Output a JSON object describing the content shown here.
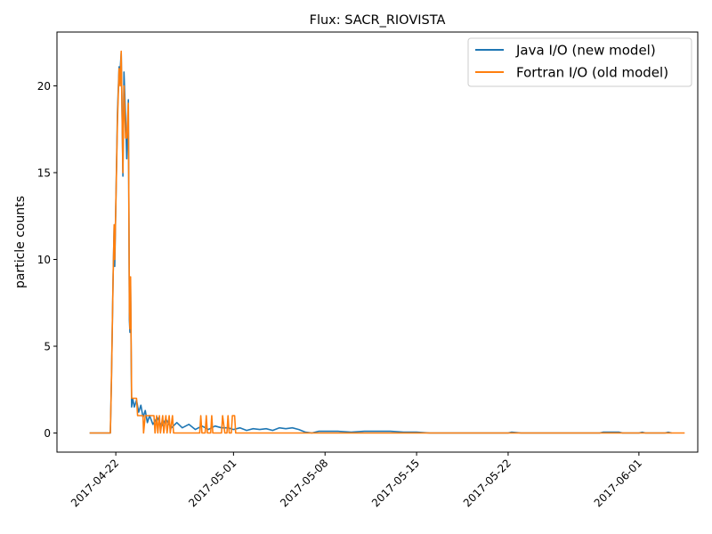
{
  "chart_data": {
    "type": "line",
    "title": "Flux: SACR_RIOVISTA",
    "xlabel": "",
    "ylabel": "particle counts",
    "x_ticks": [
      "2017-04-22",
      "2017-05-01",
      "2017-05-08",
      "2017-05-15",
      "2017-05-22",
      "2017-06-01"
    ],
    "y_ticks": [
      "0",
      "5",
      "10",
      "15",
      "20"
    ],
    "xlim": [
      "2017-04-17T12:00",
      "2017-06-05T12:00"
    ],
    "ylim": [
      -1.1,
      23.1
    ],
    "grid": false,
    "legend": "top-right",
    "series": [
      {
        "name": "Java I/O (new model)",
        "color": "#1f77b4",
        "points": [
          [
            "2017-04-20T00:00",
            0
          ],
          [
            "2017-04-21T14:00",
            0
          ],
          [
            "2017-04-21T16:00",
            3.0
          ],
          [
            "2017-04-21T19:00",
            9.0
          ],
          [
            "2017-04-21T21:00",
            12.0
          ],
          [
            "2017-04-21T22:00",
            9.6
          ],
          [
            "2017-04-22T00:00",
            13.0
          ],
          [
            "2017-04-22T03:00",
            18.5
          ],
          [
            "2017-04-22T06:00",
            21.1
          ],
          [
            "2017-04-22T08:00",
            20.9
          ],
          [
            "2017-04-22T10:00",
            21.9
          ],
          [
            "2017-04-22T13:00",
            14.8
          ],
          [
            "2017-04-22T15:00",
            20.8
          ],
          [
            "2017-04-22T18:00",
            18.2
          ],
          [
            "2017-04-22T20:00",
            15.8
          ],
          [
            "2017-04-22T23:00",
            19.2
          ],
          [
            "2017-04-23T01:00",
            6.5
          ],
          [
            "2017-04-23T02:00",
            5.8
          ],
          [
            "2017-04-23T03:00",
            8.5
          ],
          [
            "2017-04-23T05:00",
            1.5
          ],
          [
            "2017-04-23T07:00",
            2.0
          ],
          [
            "2017-04-23T10:00",
            1.5
          ],
          [
            "2017-04-23T14:00",
            1.9
          ],
          [
            "2017-04-23T18:00",
            1.2
          ],
          [
            "2017-04-23T22:00",
            1.6
          ],
          [
            "2017-04-24T02:00",
            0.9
          ],
          [
            "2017-04-24T06:00",
            1.3
          ],
          [
            "2017-04-24T10:00",
            0.6
          ],
          [
            "2017-04-24T14:00",
            1.0
          ],
          [
            "2017-04-24T20:00",
            0.5
          ],
          [
            "2017-04-25T04:00",
            0.9
          ],
          [
            "2017-04-25T12:00",
            0.4
          ],
          [
            "2017-04-25T20:00",
            0.8
          ],
          [
            "2017-04-26T06:00",
            0.3
          ],
          [
            "2017-04-26T16:00",
            0.6
          ],
          [
            "2017-04-27T02:00",
            0.3
          ],
          [
            "2017-04-27T14:00",
            0.5
          ],
          [
            "2017-04-28T02:00",
            0.2
          ],
          [
            "2017-04-28T14:00",
            0.4
          ],
          [
            "2017-04-29T02:00",
            0.2
          ],
          [
            "2017-04-29T14:00",
            0.4
          ],
          [
            "2017-04-30T02:00",
            0.3
          ],
          [
            "2017-04-30T14:00",
            0.3
          ],
          [
            "2017-05-01T00:00",
            0.2
          ],
          [
            "2017-05-01T12:00",
            0.3
          ],
          [
            "2017-05-02T00:00",
            0.15
          ],
          [
            "2017-05-02T12:00",
            0.25
          ],
          [
            "2017-05-03T00:00",
            0.2
          ],
          [
            "2017-05-03T12:00",
            0.25
          ],
          [
            "2017-05-04T00:00",
            0.15
          ],
          [
            "2017-05-04T12:00",
            0.3
          ],
          [
            "2017-05-05T00:00",
            0.25
          ],
          [
            "2017-05-05T12:00",
            0.3
          ],
          [
            "2017-05-06T00:00",
            0.2
          ],
          [
            "2017-05-06T12:00",
            0.05
          ],
          [
            "2017-05-07T00:00",
            0
          ],
          [
            "2017-05-07T12:00",
            0.1
          ],
          [
            "2017-05-08T00:00",
            0.1
          ],
          [
            "2017-05-09T00:00",
            0.1
          ],
          [
            "2017-05-10T00:00",
            0.05
          ],
          [
            "2017-05-11T00:00",
            0.1
          ],
          [
            "2017-05-12T00:00",
            0.1
          ],
          [
            "2017-05-13T00:00",
            0.1
          ],
          [
            "2017-05-14T00:00",
            0.05
          ],
          [
            "2017-05-15T00:00",
            0.05
          ],
          [
            "2017-05-16T00:00",
            0
          ],
          [
            "2017-05-22T00:00",
            0
          ],
          [
            "2017-05-22T06:00",
            0.05
          ],
          [
            "2017-05-23T00:00",
            0
          ],
          [
            "2017-05-29T00:00",
            0
          ],
          [
            "2017-05-29T06:00",
            0.05
          ],
          [
            "2017-05-30T12:00",
            0.05
          ],
          [
            "2017-05-30T18:00",
            0
          ],
          [
            "2017-06-01T00:00",
            0
          ],
          [
            "2017-06-01T06:00",
            0.05
          ],
          [
            "2017-06-01T12:00",
            0
          ],
          [
            "2017-06-03T00:00",
            0
          ],
          [
            "2017-06-03T06:00",
            0.05
          ],
          [
            "2017-06-03T12:00",
            0
          ]
        ]
      },
      {
        "name": "Fortran I/O (old model)",
        "color": "#ff7f0e",
        "points": [
          [
            "2017-04-20T00:00",
            0
          ],
          [
            "2017-04-21T14:00",
            0
          ],
          [
            "2017-04-21T16:00",
            3.0
          ],
          [
            "2017-04-21T19:00",
            9.0
          ],
          [
            "2017-04-21T21:00",
            12.0
          ],
          [
            "2017-04-21T22:00",
            10.0
          ],
          [
            "2017-04-22T00:00",
            13.0
          ],
          [
            "2017-04-22T03:00",
            18.0
          ],
          [
            "2017-04-22T06:00",
            21.0
          ],
          [
            "2017-04-22T08:00",
            20.0
          ],
          [
            "2017-04-22T10:00",
            22.0
          ],
          [
            "2017-04-22T13:00",
            15.0
          ],
          [
            "2017-04-22T15:00",
            20.0
          ],
          [
            "2017-04-22T18:00",
            17.0
          ],
          [
            "2017-04-22T20:00",
            17.0
          ],
          [
            "2017-04-22T23:00",
            19.0
          ],
          [
            "2017-04-23T01:00",
            7.0
          ],
          [
            "2017-04-23T02:00",
            6.0
          ],
          [
            "2017-04-23T03:00",
            9.0
          ],
          [
            "2017-04-23T05:00",
            2.0
          ],
          [
            "2017-04-23T14:00",
            2.0
          ],
          [
            "2017-04-23T16:00",
            1.0
          ],
          [
            "2017-04-24T02:00",
            1.0
          ],
          [
            "2017-04-24T03:00",
            0
          ],
          [
            "2017-04-24T06:00",
            1.0
          ],
          [
            "2017-04-24T22:00",
            1.0
          ],
          [
            "2017-04-25T00:00",
            0
          ],
          [
            "2017-04-25T03:00",
            1.0
          ],
          [
            "2017-04-25T05:00",
            0
          ],
          [
            "2017-04-25T08:00",
            1.0
          ],
          [
            "2017-04-25T10:00",
            0
          ],
          [
            "2017-04-25T14:00",
            1.0
          ],
          [
            "2017-04-25T16:00",
            0
          ],
          [
            "2017-04-25T20:00",
            1.0
          ],
          [
            "2017-04-25T22:00",
            0
          ],
          [
            "2017-04-26T02:00",
            1.0
          ],
          [
            "2017-04-26T04:00",
            0
          ],
          [
            "2017-04-26T08:00",
            1.0
          ],
          [
            "2017-04-26T10:00",
            0
          ],
          [
            "2017-04-28T10:00",
            0
          ],
          [
            "2017-04-28T12:00",
            1.0
          ],
          [
            "2017-04-28T14:00",
            0
          ],
          [
            "2017-04-28T20:00",
            0
          ],
          [
            "2017-04-28T22:00",
            1.0
          ],
          [
            "2017-04-29T00:00",
            0
          ],
          [
            "2017-04-29T06:00",
            0
          ],
          [
            "2017-04-29T08:00",
            1.0
          ],
          [
            "2017-04-29T10:00",
            0
          ],
          [
            "2017-04-30T02:00",
            0
          ],
          [
            "2017-04-30T04:00",
            1.0
          ],
          [
            "2017-04-30T08:00",
            0
          ],
          [
            "2017-04-30T12:00",
            0
          ],
          [
            "2017-04-30T14:00",
            1.0
          ],
          [
            "2017-04-30T16:00",
            0
          ],
          [
            "2017-04-30T20:00",
            0
          ],
          [
            "2017-04-30T22:00",
            1.0
          ],
          [
            "2017-05-01T02:00",
            1.0
          ],
          [
            "2017-05-01T04:00",
            0
          ],
          [
            "2017-06-04T12:00",
            0
          ]
        ]
      }
    ]
  }
}
